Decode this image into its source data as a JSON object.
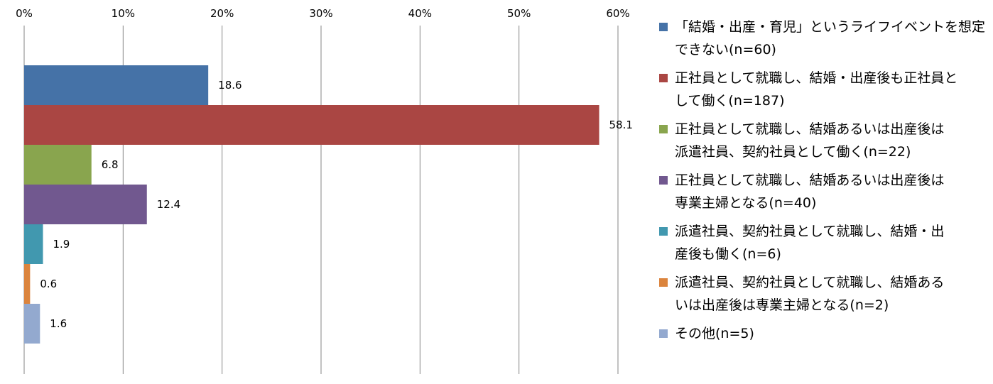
{
  "chart_data": {
    "type": "bar",
    "orientation": "horizontal",
    "xlim": [
      0,
      60
    ],
    "x_ticks": [
      "0%",
      "10%",
      "20%",
      "30%",
      "40%",
      "50%",
      "60%"
    ],
    "grid": "vertical",
    "legend_position": "right",
    "series": [
      {
        "name": "「結婚・出産・育児」というライフイベントを想定できない(n=60)",
        "value": 18.6,
        "label": "18.6",
        "color": "#4572a7"
      },
      {
        "name": "正社員として就職し、結婚・出産後も正社員として働く(n=187)",
        "value": 58.1,
        "label": "58.1",
        "color": "#aa4643"
      },
      {
        "name": "正社員として就職し、結婚あるいは出産後は派遣社員、契約社員として働く(n=22)",
        "value": 6.8,
        "label": "6.8",
        "color": "#89a54e"
      },
      {
        "name": "正社員として就職し、結婚あるいは出産後は専業主婦となる(n=40)",
        "value": 12.4,
        "label": "12.4",
        "color": "#71588f"
      },
      {
        "name": "派遣社員、契約社員として就職し、結婚・出産後も働く(n=6)",
        "value": 1.9,
        "label": "1.9",
        "color": "#4198af"
      },
      {
        "name": "派遣社員、契約社員として就職し、結婚あるいは出産後は専業主婦となる(n=2)",
        "value": 0.6,
        "label": "0.6",
        "color": "#db843d"
      },
      {
        "name": "その他(n=5)",
        "value": 1.6,
        "label": "1.6",
        "color": "#93a9cf"
      }
    ]
  },
  "legend": [
    {
      "lines": [
        "「結婚・出産・育児」というライフイベントを想定",
        "できない(n=60)"
      ],
      "color": "#4572a7"
    },
    {
      "lines": [
        "正社員として就職し、結婚・出産後も正社員と",
        "して働く(n=187)"
      ],
      "color": "#aa4643"
    },
    {
      "lines": [
        "正社員として就職し、結婚あるいは出産後は",
        "派遣社員、契約社員として働く(n=22)"
      ],
      "color": "#89a54e"
    },
    {
      "lines": [
        "正社員として就職し、結婚あるいは出産後は",
        "専業主婦となる(n=40)"
      ],
      "color": "#71588f"
    },
    {
      "lines": [
        "派遣社員、契約社員として就職し、結婚・出",
        "産後も働く(n=6)"
      ],
      "color": "#4198af"
    },
    {
      "lines": [
        "派遣社員、契約社員として就職し、結婚ある",
        "いは出産後は専業主婦となる(n=2)"
      ],
      "color": "#db843d"
    },
    {
      "lines": [
        "その他(n=5)"
      ],
      "color": "#93a9cf"
    }
  ]
}
